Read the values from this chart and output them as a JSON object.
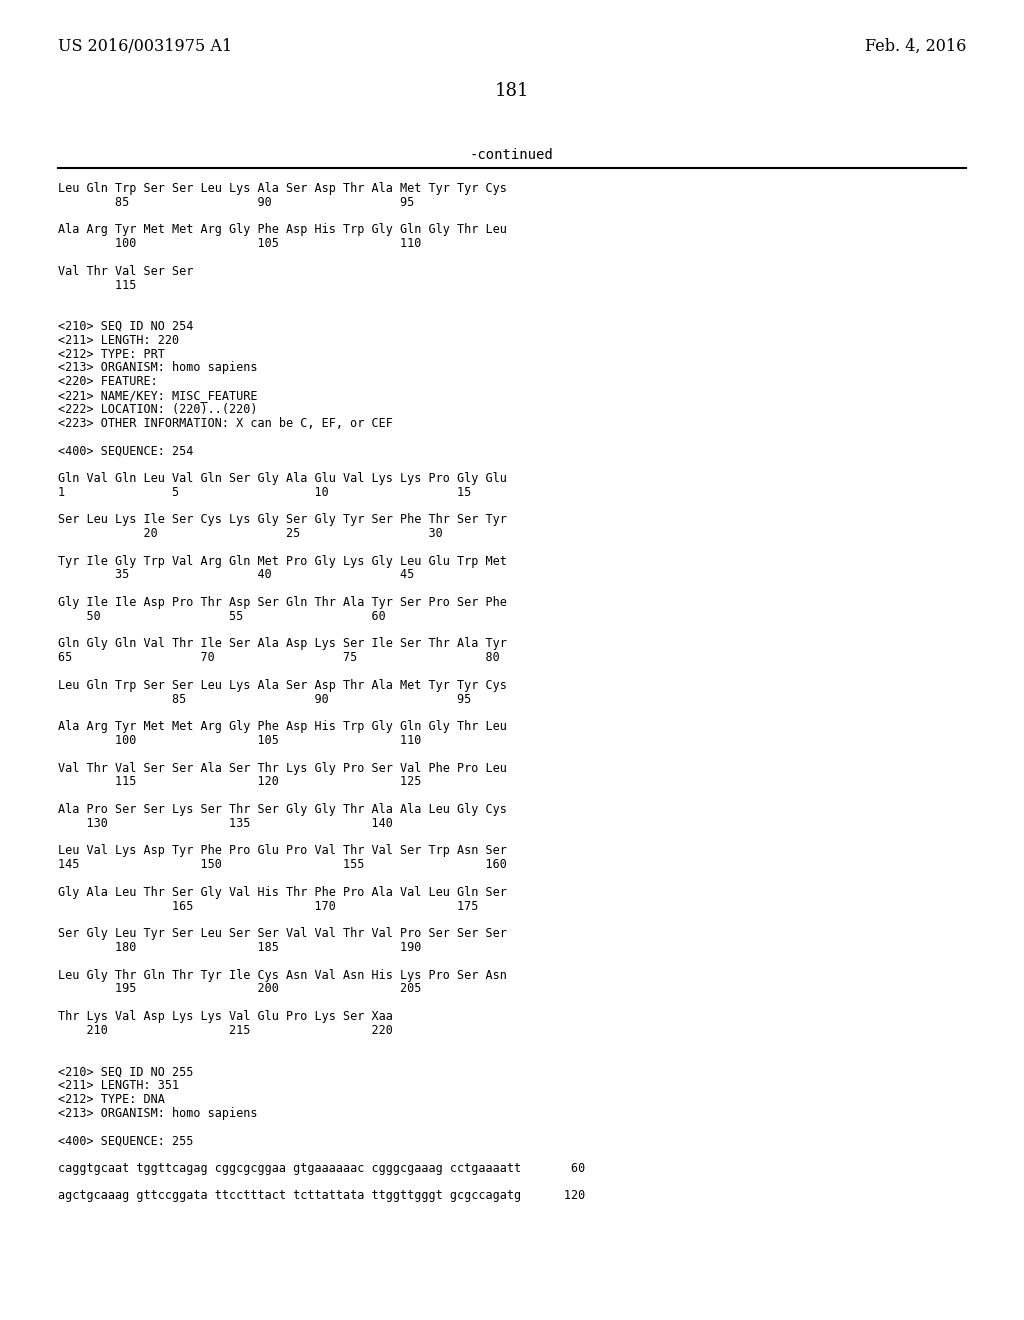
{
  "header_left": "US 2016/0031975 A1",
  "header_right": "Feb. 4, 2016",
  "page_number": "181",
  "continued_label": "-continued",
  "background_color": "#ffffff",
  "text_color": "#000000",
  "font_size_header": 11.5,
  "font_size_page": 13,
  "font_size_continued": 10,
  "font_size_body": 8.5,
  "lines": [
    {
      "text": "Leu Gln Trp Ser Ser Leu Lys Ala Ser Asp Thr Ala Met Tyr Tyr Cys"
    },
    {
      "text": "        85                  90                  95"
    },
    {
      "text": ""
    },
    {
      "text": "Ala Arg Tyr Met Met Arg Gly Phe Asp His Trp Gly Gln Gly Thr Leu"
    },
    {
      "text": "        100                 105                 110"
    },
    {
      "text": ""
    },
    {
      "text": "Val Thr Val Ser Ser"
    },
    {
      "text": "        115"
    },
    {
      "text": ""
    },
    {
      "text": ""
    },
    {
      "text": "<210> SEQ ID NO 254"
    },
    {
      "text": "<211> LENGTH: 220"
    },
    {
      "text": "<212> TYPE: PRT"
    },
    {
      "text": "<213> ORGANISM: homo sapiens"
    },
    {
      "text": "<220> FEATURE:"
    },
    {
      "text": "<221> NAME/KEY: MISC_FEATURE"
    },
    {
      "text": "<222> LOCATION: (220)..(220)"
    },
    {
      "text": "<223> OTHER INFORMATION: X can be C, EF, or CEF"
    },
    {
      "text": ""
    },
    {
      "text": "<400> SEQUENCE: 254"
    },
    {
      "text": ""
    },
    {
      "text": "Gln Val Gln Leu Val Gln Ser Gly Ala Glu Val Lys Lys Pro Gly Glu"
    },
    {
      "text": "1               5                   10                  15"
    },
    {
      "text": ""
    },
    {
      "text": "Ser Leu Lys Ile Ser Cys Lys Gly Ser Gly Tyr Ser Phe Thr Ser Tyr"
    },
    {
      "text": "            20                  25                  30"
    },
    {
      "text": ""
    },
    {
      "text": "Tyr Ile Gly Trp Val Arg Gln Met Pro Gly Lys Gly Leu Glu Trp Met"
    },
    {
      "text": "        35                  40                  45"
    },
    {
      "text": ""
    },
    {
      "text": "Gly Ile Ile Asp Pro Thr Asp Ser Gln Thr Ala Tyr Ser Pro Ser Phe"
    },
    {
      "text": "    50                  55                  60"
    },
    {
      "text": ""
    },
    {
      "text": "Gln Gly Gln Val Thr Ile Ser Ala Asp Lys Ser Ile Ser Thr Ala Tyr"
    },
    {
      "text": "65                  70                  75                  80"
    },
    {
      "text": ""
    },
    {
      "text": "Leu Gln Trp Ser Ser Leu Lys Ala Ser Asp Thr Ala Met Tyr Tyr Cys"
    },
    {
      "text": "                85                  90                  95"
    },
    {
      "text": ""
    },
    {
      "text": "Ala Arg Tyr Met Met Arg Gly Phe Asp His Trp Gly Gln Gly Thr Leu"
    },
    {
      "text": "        100                 105                 110"
    },
    {
      "text": ""
    },
    {
      "text": "Val Thr Val Ser Ser Ala Ser Thr Lys Gly Pro Ser Val Phe Pro Leu"
    },
    {
      "text": "        115                 120                 125"
    },
    {
      "text": ""
    },
    {
      "text": "Ala Pro Ser Ser Lys Ser Thr Ser Gly Gly Thr Ala Ala Leu Gly Cys"
    },
    {
      "text": "    130                 135                 140"
    },
    {
      "text": ""
    },
    {
      "text": "Leu Val Lys Asp Tyr Phe Pro Glu Pro Val Thr Val Ser Trp Asn Ser"
    },
    {
      "text": "145                 150                 155                 160"
    },
    {
      "text": ""
    },
    {
      "text": "Gly Ala Leu Thr Ser Gly Val His Thr Phe Pro Ala Val Leu Gln Ser"
    },
    {
      "text": "                165                 170                 175"
    },
    {
      "text": ""
    },
    {
      "text": "Ser Gly Leu Tyr Ser Leu Ser Ser Val Val Thr Val Pro Ser Ser Ser"
    },
    {
      "text": "        180                 185                 190"
    },
    {
      "text": ""
    },
    {
      "text": "Leu Gly Thr Gln Thr Tyr Ile Cys Asn Val Asn His Lys Pro Ser Asn"
    },
    {
      "text": "        195                 200                 205"
    },
    {
      "text": ""
    },
    {
      "text": "Thr Lys Val Asp Lys Lys Val Glu Pro Lys Ser Xaa"
    },
    {
      "text": "    210                 215                 220"
    },
    {
      "text": ""
    },
    {
      "text": ""
    },
    {
      "text": "<210> SEQ ID NO 255"
    },
    {
      "text": "<211> LENGTH: 351"
    },
    {
      "text": "<212> TYPE: DNA"
    },
    {
      "text": "<213> ORGANISM: homo sapiens"
    },
    {
      "text": ""
    },
    {
      "text": "<400> SEQUENCE: 255"
    },
    {
      "text": ""
    },
    {
      "text": "caggtgcaat tggttcagag cggcgcggaa gtgaaaaaac cgggcgaaag cctgaaaatt       60"
    },
    {
      "text": ""
    },
    {
      "text": "agctgcaaag gttccggata ttcctttact tcttattata ttggttgggt gcgccagatg      120"
    }
  ]
}
